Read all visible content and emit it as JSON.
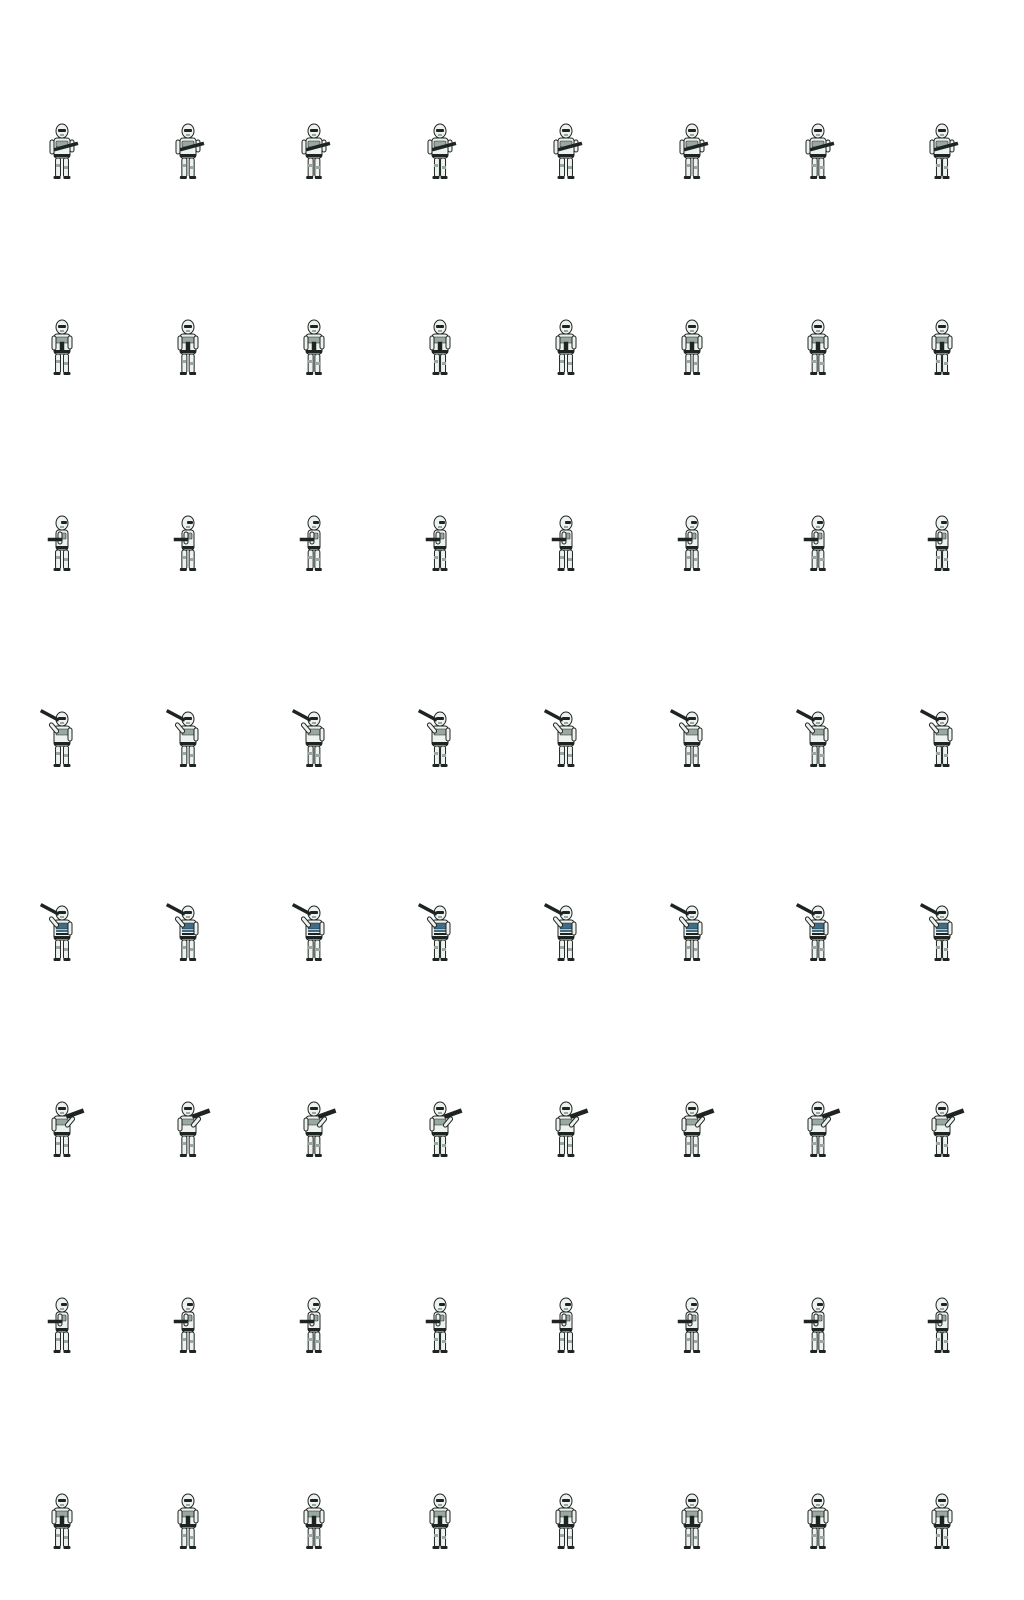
{
  "sprite_sheet": {
    "columns": 8,
    "rows": 8,
    "background": "#ffffff",
    "armor_color": "#eef2ef",
    "shade_color": "#9aa8a2",
    "dark_color": "#1e2422",
    "accent_color": "#3f6c86",
    "animations": [
      {
        "name": "idle-front",
        "pose": "front"
      },
      {
        "name": "idle-front-turn",
        "pose": "front-side"
      },
      {
        "name": "side-aim",
        "pose": "side"
      },
      {
        "name": "aim-up",
        "pose": "aim-up"
      },
      {
        "name": "aim-up-back",
        "pose": "aim-up-back"
      },
      {
        "name": "aim-forward",
        "pose": "aim-forward"
      },
      {
        "name": "side-walk",
        "pose": "side"
      },
      {
        "name": "idle-back",
        "pose": "front-side"
      }
    ]
  }
}
